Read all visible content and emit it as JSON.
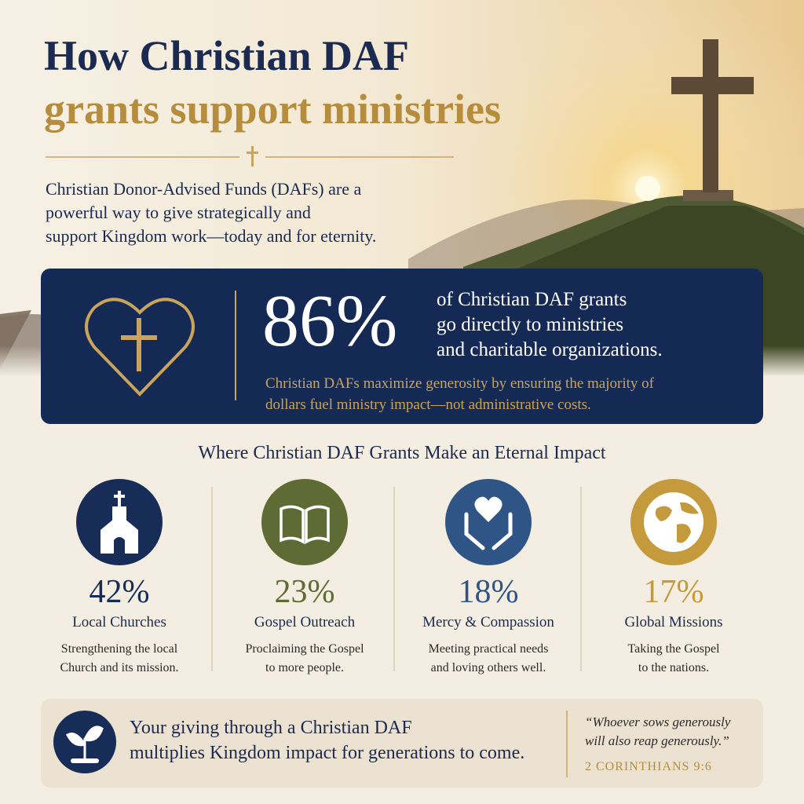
{
  "header": {
    "title_line1": "How Christian DAF",
    "title_line2": "grants support ministries",
    "intro": [
      "Christian Donor-Advised Funds (DAFs) are a",
      "powerful way to give strategically and",
      "support Kingdom work—today and for eternity."
    ]
  },
  "highlight": {
    "stat": "86%",
    "statement": [
      "of Christian DAF grants",
      "go directly to ministries",
      "and charitable organizations."
    ],
    "note": [
      "Christian DAFs maximize generosity by ensuring the majority of",
      "dollars fuel ministry impact—not administrative costs."
    ]
  },
  "section_title": "Where Christian DAF Grants Make an Eternal Impact",
  "categories": [
    {
      "percent": "42%",
      "label": "Local Churches",
      "description": [
        "Strengthening the local",
        "Church and its mission."
      ]
    },
    {
      "percent": "23%",
      "label": "Gospel Outreach",
      "description": [
        "Proclaiming the Gospel",
        "to more people."
      ]
    },
    {
      "percent": "18%",
      "label": "Mercy & Compassion",
      "description": [
        "Meeting practical needs",
        "and loving others well."
      ]
    },
    {
      "percent": "17%",
      "label": "Global Missions",
      "description": [
        "Taking the Gospel",
        "to the nations."
      ]
    }
  ],
  "footer": {
    "message": [
      "Your giving through a Christian DAF",
      "multiplies Kingdom impact for generations to come."
    ],
    "quote": [
      "“Whoever sows generously",
      "will also reap generously.”"
    ],
    "reference": "2 CORINTHIANS 9:6"
  }
}
